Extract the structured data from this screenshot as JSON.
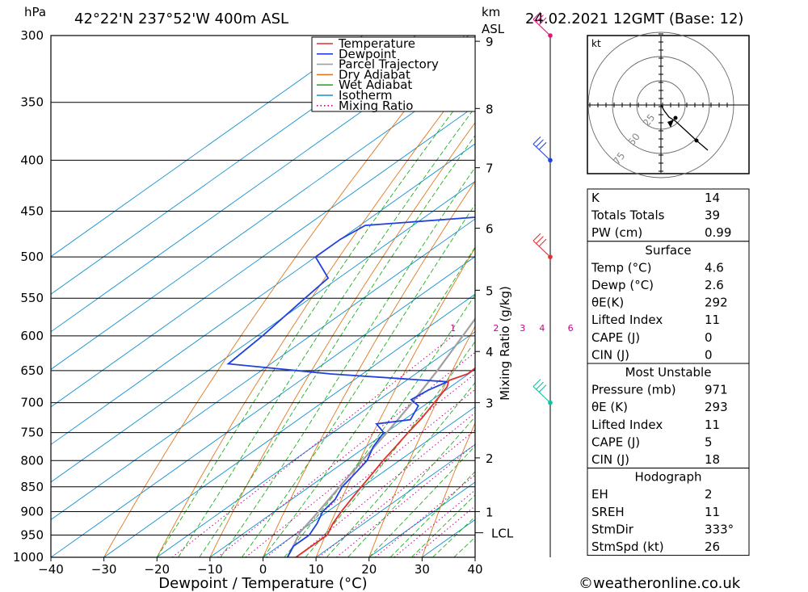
{
  "header": {
    "hpa_label": "hPa",
    "location": "42°22'N  237°52'W  400m  ASL",
    "km_label": "km",
    "asl_label": "ASL",
    "datetime": "24.02.2021  12GMT  (Base: 12)"
  },
  "footer": {
    "copyright": "©weatheronline.co.uk"
  },
  "legend": [
    {
      "label": "Temperature",
      "color": "#e0302c",
      "style": "solid"
    },
    {
      "label": "Dewpoint",
      "color": "#2040e0",
      "style": "solid"
    },
    {
      "label": "Parcel Trajectory",
      "color": "#a0a0a0",
      "style": "solid"
    },
    {
      "label": "Dry Adiabat",
      "color": "#e07820",
      "style": "solid"
    },
    {
      "label": "Wet Adiabat",
      "color": "#20b020",
      "style": "solid"
    },
    {
      "label": "Isotherm",
      "color": "#1090d0",
      "style": "solid"
    },
    {
      "label": "Mixing Ratio",
      "color": "#cc0088",
      "style": "dotted"
    }
  ],
  "chart_data": {
    "type": "skew-t log-p",
    "xlabel": "Dewpoint / Temperature (°C)",
    "ylabel": "hPa",
    "mixing_ratio_axis_label": "Mixing Ratio (g/kg)",
    "x_ticks": [
      -40,
      -30,
      -20,
      -10,
      0,
      10,
      20,
      30,
      40
    ],
    "x_tick_labels": [
      "−40",
      "−30",
      "−20",
      "−10",
      "0",
      "10",
      "20",
      "30",
      "40"
    ],
    "pressure_levels": [
      300,
      350,
      400,
      450,
      500,
      550,
      600,
      650,
      700,
      750,
      800,
      850,
      900,
      950,
      1000
    ],
    "pressure_labels": [
      "300",
      "350",
      "400",
      "450",
      "500",
      "550",
      "600",
      "650",
      "700",
      "750",
      "800",
      "850",
      "900",
      "950",
      "1000"
    ],
    "xlim": [
      -40,
      40
    ],
    "ylim": [
      1000,
      300
    ],
    "km_ticks": [
      {
        "label": "9",
        "p": 304
      },
      {
        "label": "8",
        "p": 355
      },
      {
        "label": "7",
        "p": 407
      },
      {
        "label": "6",
        "p": 468
      },
      {
        "label": "5",
        "p": 540
      },
      {
        "label": "4",
        "p": 622
      },
      {
        "label": "3",
        "p": 700
      },
      {
        "label": "2",
        "p": 795
      },
      {
        "label": "1",
        "p": 900
      }
    ],
    "lcl": {
      "label": "LCL",
      "p": 945
    },
    "mixing_ratio_lines": [
      "1",
      "2",
      "3",
      "4",
      "6",
      "8",
      "10",
      "16",
      "20",
      "25"
    ],
    "temperature": [
      [
        1000,
        6.2
      ],
      [
        975,
        6.2
      ],
      [
        950,
        6.2
      ],
      [
        925,
        4.2
      ],
      [
        900,
        2.6
      ],
      [
        875,
        1.2
      ],
      [
        850,
        -0.2
      ],
      [
        825,
        -1.6
      ],
      [
        800,
        -3.1
      ],
      [
        775,
        -4.4
      ],
      [
        750,
        -5.8
      ],
      [
        725,
        -7.1
      ],
      [
        700,
        -8.8
      ],
      [
        675,
        -10.6
      ],
      [
        665,
        -12.0
      ],
      [
        655,
        -10.2
      ],
      [
        640,
        -10.4
      ],
      [
        600,
        -13.1
      ],
      [
        550,
        -17.6
      ],
      [
        500,
        -20.8
      ],
      [
        475,
        -22.2
      ],
      [
        450,
        -25.4
      ],
      [
        425,
        -24.3
      ],
      [
        400,
        -25.6
      ],
      [
        375,
        -29.2
      ],
      [
        350,
        -33.6
      ],
      [
        325,
        -38.0
      ],
      [
        300,
        -42.4
      ]
    ],
    "dewpoint": [
      [
        1000,
        4.6
      ],
      [
        975,
        2.8
      ],
      [
        950,
        2.8
      ],
      [
        925,
        1.2
      ],
      [
        900,
        -0.9
      ],
      [
        875,
        -1.8
      ],
      [
        850,
        -3.8
      ],
      [
        825,
        -4.9
      ],
      [
        800,
        -6.1
      ],
      [
        775,
        -8.6
      ],
      [
        750,
        -10.4
      ],
      [
        735,
        -14.1
      ],
      [
        728,
        -8.8
      ],
      [
        705,
        -11.0
      ],
      [
        695,
        -14.0
      ],
      [
        680,
        -13.3
      ],
      [
        667,
        -11.9
      ],
      [
        655,
        -36.0
      ],
      [
        640,
        -58.0
      ],
      [
        600,
        -59.0
      ],
      [
        550,
        -61.0
      ],
      [
        525,
        -62.0
      ],
      [
        500,
        -70.0
      ],
      [
        480,
        -70.0
      ],
      [
        465,
        -69.0
      ],
      [
        452,
        -41.0
      ],
      [
        440,
        -30.5
      ],
      [
        425,
        -31.5
      ],
      [
        400,
        -35.2
      ],
      [
        390,
        -35.5
      ],
      [
        375,
        -39.8
      ],
      [
        365,
        -38.2
      ],
      [
        355,
        -37.5
      ],
      [
        350,
        -39.0
      ],
      [
        325,
        -45.0
      ],
      [
        310,
        -50.0
      ],
      [
        302,
        -55.0
      ]
    ],
    "parcel": [
      [
        1000,
        4.6
      ],
      [
        975,
        2.8
      ],
      [
        945,
        0.4
      ],
      [
        900,
        -1.7
      ],
      [
        850,
        -4.3
      ],
      [
        800,
        -7.0
      ],
      [
        750,
        -9.8
      ],
      [
        700,
        -13.0
      ],
      [
        650,
        -16.8
      ],
      [
        600,
        -21.2
      ],
      [
        550,
        -26.1
      ],
      [
        500,
        -31.8
      ],
      [
        450,
        -38.2
      ],
      [
        400,
        -45.8
      ],
      [
        350,
        -54.6
      ],
      [
        300,
        -64.0
      ]
    ],
    "wind_barbs": [
      {
        "p": 300,
        "color": "#e0147a"
      },
      {
        "p": 400,
        "color": "#2244dd"
      },
      {
        "p": 500,
        "color": "#e03030"
      },
      {
        "p": 700,
        "color": "#10c0a0"
      }
    ],
    "hodograph": {
      "unit_label": "kt",
      "ring_labels": [
        "25",
        "50",
        "75"
      ]
    },
    "indices": {
      "general": [
        {
          "label": "K",
          "value": "14"
        },
        {
          "label": "Totals Totals",
          "value": "39"
        },
        {
          "label": "PW (cm)",
          "value": "0.99"
        }
      ],
      "surface_title": "Surface",
      "surface": [
        {
          "label": "Temp (°C)",
          "value": "4.6"
        },
        {
          "label": "Dewp (°C)",
          "value": "2.6"
        },
        {
          "label": "θE(K)",
          "value": "292"
        },
        {
          "label": "Lifted Index",
          "value": "11"
        },
        {
          "label": "CAPE (J)",
          "value": "0"
        },
        {
          "label": "CIN (J)",
          "value": "0"
        }
      ],
      "mu_title": "Most Unstable",
      "most_unstable": [
        {
          "label": "Pressure (mb)",
          "value": "971"
        },
        {
          "label": "θE (K)",
          "value": "293"
        },
        {
          "label": "Lifted Index",
          "value": "11"
        },
        {
          "label": "CAPE (J)",
          "value": "5"
        },
        {
          "label": "CIN (J)",
          "value": "18"
        }
      ],
      "hodo_title": "Hodograph",
      "hodograph": [
        {
          "label": "EH",
          "value": "2"
        },
        {
          "label": "SREH",
          "value": "11"
        },
        {
          "label": "StmDir",
          "value": "333°"
        },
        {
          "label": "StmSpd (kt)",
          "value": "26"
        }
      ]
    }
  }
}
